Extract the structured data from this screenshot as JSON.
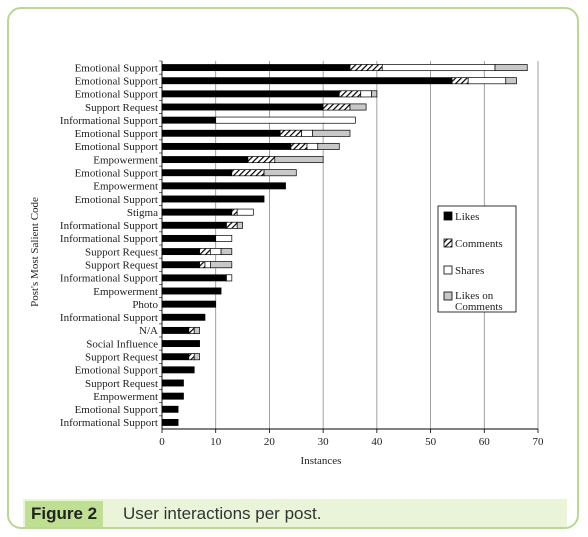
{
  "chart_data": {
    "type": "bar",
    "orientation": "horizontal",
    "stacked": true,
    "xlabel": "Instances",
    "ylabel": "Post's Most Salient Code",
    "xlim": [
      0,
      70
    ],
    "xticks": [
      0,
      10,
      20,
      30,
      40,
      50,
      60,
      70
    ],
    "grid": "vertical",
    "legend_position": "right",
    "categories": [
      "Emotional Support",
      "Emotional Support",
      "Emotional Support",
      "Support Request",
      "Informational Support",
      "Emotional Support",
      "Emotional Support",
      "Empowerment",
      "Emotional Support",
      "Empowerment",
      "Emotional Support",
      "Stigma",
      "Informational Support",
      "Informational Support",
      "Support Request",
      "Support Request",
      "Informational Support",
      "Empowerment",
      "Photo",
      "Informational Support",
      "N/A",
      "Social Influence",
      "Support Request",
      "Emotional Support",
      "Support Request",
      "Empowerment",
      "Emotional Support",
      "Informational Support"
    ],
    "series": [
      {
        "name": "Likes",
        "color": "#000000",
        "pattern": "solid",
        "values": [
          35,
          54,
          33,
          30,
          10,
          22,
          24,
          16,
          13,
          23,
          19,
          13,
          12,
          10,
          7,
          7,
          12,
          11,
          10,
          8,
          5,
          7,
          5,
          6,
          4,
          4,
          3,
          3
        ]
      },
      {
        "name": "Comments",
        "color": "#000000",
        "pattern": "hatch",
        "values": [
          6,
          3,
          4,
          5,
          0,
          4,
          3,
          5,
          6,
          0,
          0,
          1,
          2,
          0,
          2,
          1,
          0,
          0,
          0,
          0,
          1,
          0,
          1,
          0,
          0,
          0,
          0,
          0
        ]
      },
      {
        "name": "Shares",
        "color": "#ffffff",
        "pattern": "empty",
        "values": [
          21,
          7,
          2,
          0,
          26,
          2,
          2,
          0,
          0,
          0,
          0,
          3,
          0,
          3,
          2,
          1,
          1,
          0,
          0,
          0,
          0,
          0,
          0,
          0,
          0,
          0,
          0,
          0
        ]
      },
      {
        "name": "Likes on Comments",
        "color": "#c8c8c8",
        "pattern": "solid",
        "values": [
          6,
          2,
          1,
          3,
          0,
          7,
          4,
          9,
          6,
          0,
          0,
          0,
          1,
          0,
          2,
          4,
          0,
          0,
          0,
          0,
          1,
          0,
          1,
          0,
          0,
          0,
          0,
          0
        ]
      }
    ]
  },
  "legend": {
    "likes": "Likes",
    "comments": "Comments",
    "shares": "Shares",
    "likes_on_comments_line1": "Likes on",
    "likes_on_comments_line2": "Comments"
  },
  "caption": {
    "label": "Figure 2",
    "text": "User interactions per post."
  }
}
